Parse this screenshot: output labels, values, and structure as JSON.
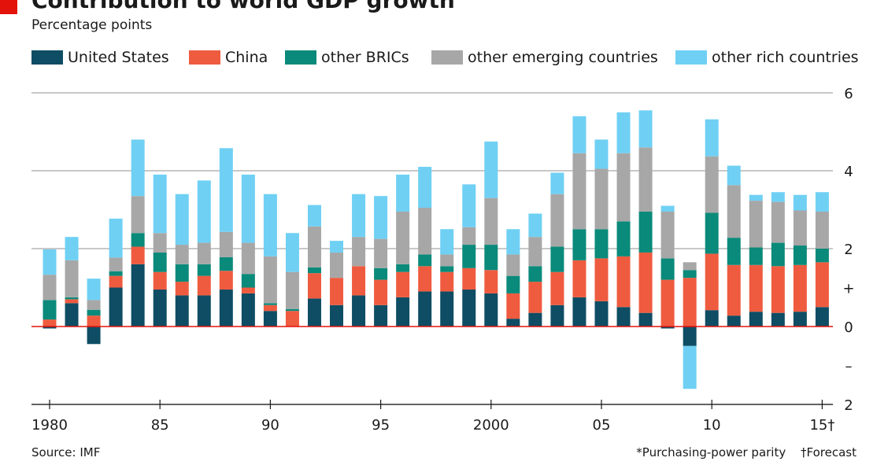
{
  "header": {
    "title": "Contribution to world GDP growth",
    "title_mark": "*",
    "subtitle": "Percentage points"
  },
  "footer": {
    "source": "Source: IMF",
    "note_ppp": "*Purchasing-power parity",
    "note_forecast": "†Forecast"
  },
  "colors": {
    "United States": "#0e4d64",
    "China": "#ef5b3f",
    "other BRICs": "#0a8a7a",
    "other emerging countries": "#a7a7a7",
    "other rich countries": "#6fd0f4",
    "zero_line": "#e3120b",
    "grid": "#b5b5b5"
  },
  "chart_data": {
    "type": "bar",
    "stacked": true,
    "title": "Contribution to world GDP growth*",
    "ylabel": "Percentage points",
    "ylim": [
      -2,
      6
    ],
    "y_ticks": [
      {
        "value": 6,
        "label": "6"
      },
      {
        "value": 4,
        "label": "4"
      },
      {
        "value": 2,
        "label": "2"
      },
      {
        "value": 1,
        "label": "+"
      },
      {
        "value": 0,
        "label": "0"
      },
      {
        "value": -1,
        "label": "–"
      },
      {
        "value": -2,
        "label": "2"
      }
    ],
    "x_ticks": [
      {
        "year": 1980,
        "label": "1980"
      },
      {
        "year": 1985,
        "label": "85"
      },
      {
        "year": 1990,
        "label": "90"
      },
      {
        "year": 1995,
        "label": "95"
      },
      {
        "year": 2000,
        "label": "2000"
      },
      {
        "year": 2005,
        "label": "05"
      },
      {
        "year": 2010,
        "label": "10"
      },
      {
        "year": 2015,
        "label": "15†"
      }
    ],
    "categories": [
      1980,
      1981,
      1982,
      1983,
      1984,
      1985,
      1986,
      1987,
      1988,
      1989,
      1990,
      1991,
      1992,
      1993,
      1994,
      1995,
      1996,
      1997,
      1998,
      1999,
      2000,
      2001,
      2002,
      2003,
      2004,
      2005,
      2006,
      2007,
      2008,
      2009,
      2010,
      2011,
      2012,
      2013,
      2014,
      2015
    ],
    "series": [
      {
        "name": "United States",
        "values": [
          -0.05,
          0.6,
          -0.45,
          1.0,
          1.6,
          0.95,
          0.8,
          0.8,
          0.95,
          0.85,
          0.4,
          0.0,
          0.72,
          0.55,
          0.8,
          0.55,
          0.75,
          0.9,
          0.9,
          0.95,
          0.85,
          0.2,
          0.35,
          0.55,
          0.75,
          0.65,
          0.5,
          0.35,
          -0.05,
          -0.5,
          0.42,
          0.28,
          0.38,
          0.35,
          0.38,
          0.5
        ]
      },
      {
        "name": "China",
        "values": [
          0.18,
          0.1,
          0.28,
          0.3,
          0.45,
          0.45,
          0.35,
          0.5,
          0.48,
          0.15,
          0.15,
          0.4,
          0.65,
          0.7,
          0.75,
          0.65,
          0.65,
          0.65,
          0.5,
          0.55,
          0.6,
          0.65,
          0.8,
          0.85,
          0.95,
          1.1,
          1.3,
          1.55,
          1.2,
          1.25,
          1.45,
          1.3,
          1.2,
          1.2,
          1.2,
          1.15
        ]
      },
      {
        "name": "other BRICs",
        "values": [
          0.5,
          0.05,
          0.15,
          0.12,
          0.35,
          0.5,
          0.45,
          0.3,
          0.35,
          0.35,
          0.05,
          0.05,
          0.15,
          0.0,
          0.0,
          0.3,
          0.2,
          0.3,
          0.15,
          0.6,
          0.65,
          0.45,
          0.4,
          0.65,
          0.8,
          0.75,
          0.9,
          1.05,
          0.55,
          0.2,
          1.05,
          0.7,
          0.45,
          0.6,
          0.5,
          0.35
        ]
      },
      {
        "name": "other emerging countries",
        "values": [
          0.65,
          0.95,
          0.25,
          0.35,
          0.95,
          0.5,
          0.5,
          0.55,
          0.65,
          0.8,
          1.2,
          0.95,
          1.05,
          0.65,
          0.75,
          0.75,
          1.35,
          1.2,
          0.3,
          0.45,
          1.2,
          0.55,
          0.75,
          1.35,
          1.95,
          1.55,
          1.75,
          1.65,
          1.2,
          0.2,
          1.45,
          1.35,
          1.2,
          1.05,
          0.9,
          0.95
        ]
      },
      {
        "name": "other rich countries",
        "values": [
          0.65,
          0.6,
          0.55,
          1.0,
          1.45,
          1.5,
          1.3,
          1.6,
          2.15,
          1.75,
          1.6,
          1.0,
          0.55,
          0.3,
          1.1,
          1.1,
          0.95,
          1.05,
          0.65,
          1.1,
          1.45,
          0.65,
          0.6,
          0.55,
          0.95,
          0.75,
          1.05,
          0.95,
          0.15,
          -1.1,
          0.95,
          0.5,
          0.15,
          0.25,
          0.4,
          0.5
        ]
      }
    ]
  }
}
